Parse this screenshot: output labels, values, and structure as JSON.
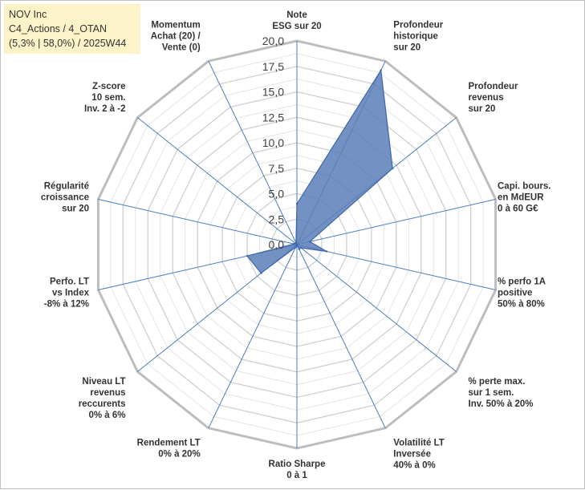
{
  "info": {
    "line1": "NOV Inc",
    "line2": "C4_Actions / 4_OTAN",
    "line3": "(5,3% | 58,0%) / 2025W44"
  },
  "colors": {
    "fill": "#5b7fb8",
    "stroke": "#3f67a8",
    "grid": "#c8c8c8",
    "spoke": "#4a7ebd",
    "info_bg": "#fdf3c8"
  },
  "chart_data": {
    "type": "radar",
    "title": "",
    "rlim": [
      0,
      20
    ],
    "ticks": [
      "0,0",
      "2,5",
      "5,0",
      "7,5",
      "10,0",
      "12,5",
      "15,0",
      "17,5",
      "20,0"
    ],
    "tick_values": [
      0,
      2.5,
      5,
      7.5,
      10,
      12.5,
      15,
      17.5,
      20
    ],
    "axes": [
      {
        "lines": [
          "Note",
          "ESG sur 20"
        ],
        "value": 4.0
      },
      {
        "lines": [
          "Profondeur",
          "historique",
          "sur 20"
        ],
        "value": 19.0
      },
      {
        "lines": [
          "Profondeur",
          "revenus",
          "sur 20"
        ],
        "value": 12.0
      },
      {
        "lines": [
          "Capi. bours.",
          "en MdEUR",
          "0 à 60 G€"
        ],
        "value": 1.3
      },
      {
        "lines": [
          "% perfo 1A",
          "positive",
          "50% à 80%"
        ],
        "value": 3.0
      },
      {
        "lines": [
          "% perte max.",
          "sur 1 sem.",
          "Inv. 50% à 20%"
        ],
        "value": 0.5
      },
      {
        "lines": [
          "Volatilité LT",
          "Inversée",
          "40% à 0%"
        ],
        "value": 0.5
      },
      {
        "lines": [
          "Ratio Sharpe",
          "0 à 1"
        ],
        "value": 0.0
      },
      {
        "lines": [
          "Rendement LT",
          "0% à 20%"
        ],
        "value": 0.3
      },
      {
        "lines": [
          "Niveau LT",
          "revenus",
          "reccurents",
          "0% à 6%"
        ],
        "value": 4.5
      },
      {
        "lines": [
          "Perfo. LT",
          "vs Index",
          "-8% à 12%"
        ],
        "value": 5.0
      },
      {
        "lines": [
          "Régularité",
          "croissance",
          "sur 20"
        ],
        "value": 0.3
      },
      {
        "lines": [
          "Z-score",
          "10 sem.",
          "Inv. 2 à -2"
        ],
        "value": 0.2
      },
      {
        "lines": [
          "Momentum",
          "Achat (20) /",
          "Vente (0)"
        ],
        "value": 0.2
      }
    ]
  }
}
